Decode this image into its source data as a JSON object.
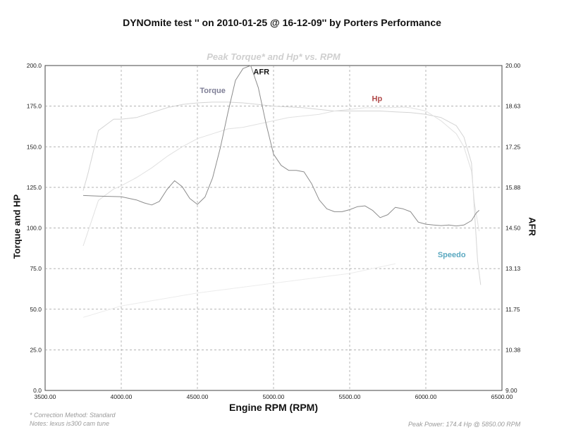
{
  "title": "DYNOmite test '' on 2010-01-25 @ 16-12-09'' by Porters Performance",
  "chart_data": {
    "type": "line",
    "subtitle": "Peak Torque* and Hp* vs. RPM",
    "xlabel": "Engine RPM (RPM)",
    "ylabel_left": "Torque and HP",
    "ylabel_right": "AFR",
    "xlim": [
      3500,
      6500
    ],
    "ylim_left": [
      0,
      200
    ],
    "ylim_right": [
      9.0,
      20.0
    ],
    "x_ticks": [
      "3500.00",
      "4000.00",
      "4500.00",
      "5000.00",
      "5500.00",
      "6000.00",
      "6500.00"
    ],
    "y_left_ticks": [
      "0.0",
      "25.0",
      "50.0",
      "75.0",
      "100.0",
      "125.0",
      "150.0",
      "175.0",
      "200.0"
    ],
    "y_right_ticks": [
      "9.00",
      "10.38",
      "11.75",
      "13.13",
      "14.50",
      "15.88",
      "17.25",
      "18.63",
      "20.00"
    ],
    "grid": true,
    "series": [
      {
        "name": "Torque",
        "axis": "left",
        "color": "#d4d4d4",
        "label_color": "#7e7e96",
        "x": [
          3750,
          3780,
          3850,
          3950,
          4000,
          4100,
          4200,
          4300,
          4400,
          4500,
          4600,
          4700,
          4800,
          4900,
          5000,
          5100,
          5200,
          5300,
          5400,
          5500,
          5600,
          5700,
          5800,
          5900,
          6000,
          6100,
          6200,
          6250,
          6300,
          6320,
          6340,
          6360
        ],
        "y": [
          123,
          133,
          160,
          167,
          167,
          168,
          171,
          174,
          176,
          177,
          177.5,
          177.5,
          177,
          176,
          175,
          174.5,
          174,
          173,
          172,
          172,
          172,
          172,
          171.5,
          171,
          170,
          168,
          163,
          156,
          140,
          110,
          80,
          65
        ]
      },
      {
        "name": "Hp",
        "axis": "left",
        "color": "#e1e1e1",
        "label_color": "#b04848",
        "x": [
          3750,
          3800,
          3850,
          3950,
          4000,
          4100,
          4200,
          4300,
          4400,
          4500,
          4600,
          4700,
          4800,
          4900,
          5000,
          5100,
          5200,
          5300,
          5400,
          5500,
          5600,
          5700,
          5800,
          5850,
          5900,
          6000,
          6100,
          6200,
          6250,
          6300,
          6320,
          6350
        ],
        "y": [
          89,
          103,
          117,
          124,
          126,
          131,
          137,
          144,
          150,
          155,
          158,
          161,
          162,
          164,
          166,
          168,
          169,
          170,
          172,
          173,
          174,
          174,
          174.2,
          174.4,
          174,
          172,
          166,
          158,
          150,
          135,
          115,
          98
        ]
      },
      {
        "name": "AFR",
        "axis": "right",
        "color": "#8c8c8c",
        "label_color": "#111111",
        "x": [
          3750,
          3850,
          4000,
          4100,
          4150,
          4200,
          4250,
          4300,
          4350,
          4400,
          4450,
          4500,
          4550,
          4600,
          4650,
          4700,
          4750,
          4800,
          4850,
          4900,
          4950,
          5000,
          5050,
          5100,
          5150,
          5200,
          5250,
          5300,
          5350,
          5400,
          5450,
          5500,
          5550,
          5600,
          5650,
          5700,
          5750,
          5800,
          5850,
          5900,
          5950,
          6000,
          6050,
          6100,
          6150,
          6200,
          6250,
          6300,
          6330,
          6350
        ],
        "y": [
          15.6,
          15.58,
          15.56,
          15.45,
          15.35,
          15.28,
          15.4,
          15.8,
          16.1,
          15.9,
          15.5,
          15.3,
          15.55,
          16.2,
          17.2,
          18.4,
          19.5,
          19.9,
          20.0,
          19.25,
          18.05,
          17.0,
          16.62,
          16.45,
          16.45,
          16.4,
          16.0,
          15.45,
          15.15,
          15.05,
          15.05,
          15.12,
          15.22,
          15.25,
          15.1,
          14.85,
          14.95,
          15.2,
          15.15,
          15.05,
          14.7,
          14.63,
          14.6,
          14.58,
          14.6,
          14.57,
          14.6,
          14.75,
          15.0,
          15.1
        ]
      },
      {
        "name": "Speedo",
        "axis": "left",
        "color": "#ececec",
        "label_color": "#5aa8c0",
        "x": [
          3750,
          4000,
          4500,
          5000,
          5500,
          5800
        ],
        "y": [
          45,
          52,
          60,
          66,
          72,
          78
        ]
      }
    ]
  },
  "footer": {
    "correction": "* Correction Method: Standard",
    "notes": "Notes: lexus is300  cam tune",
    "peak_power": "Peak Power: 174.4 Hp @ 5850.00 RPM"
  }
}
